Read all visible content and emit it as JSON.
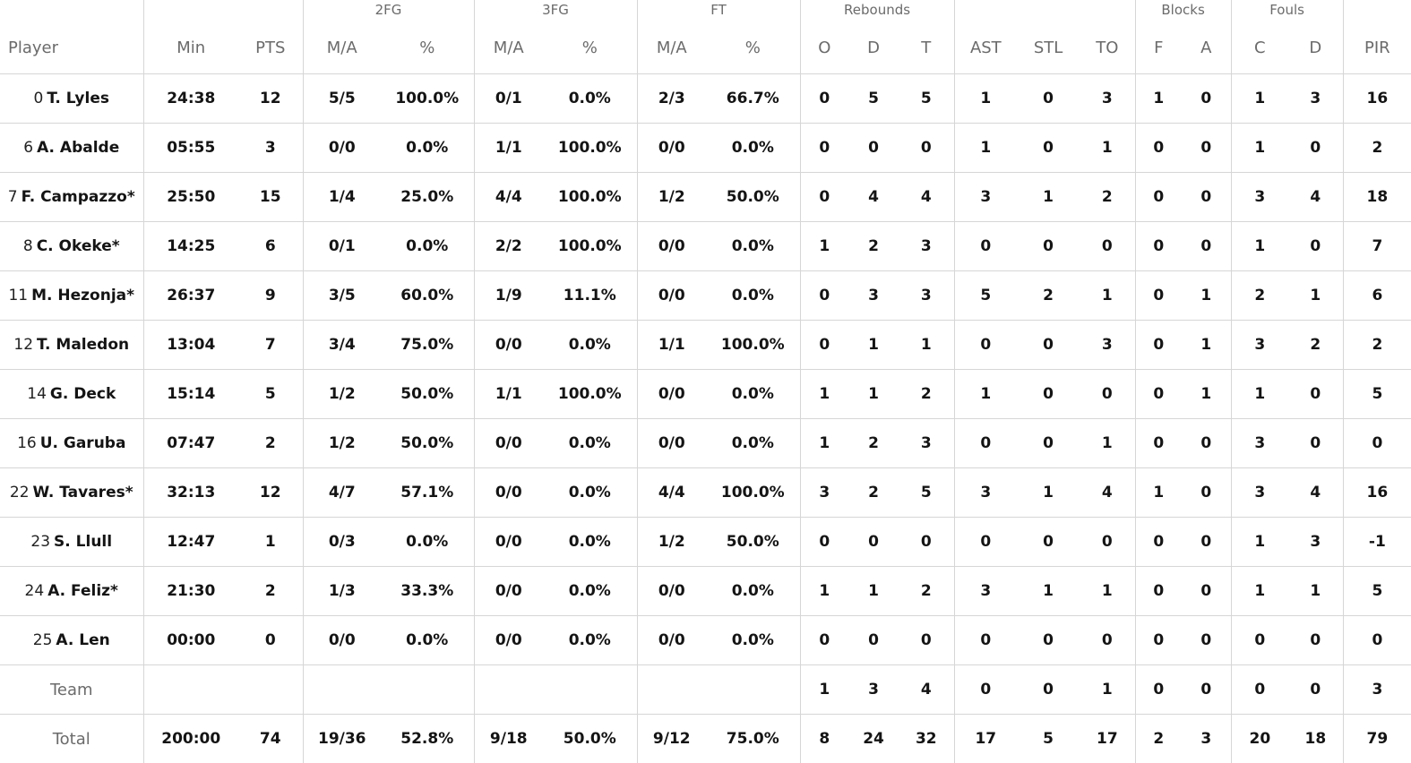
{
  "groups": {
    "fg2": "2FG",
    "fg3": "3FG",
    "ft": "FT",
    "reb": "Rebounds",
    "blk": "Blocks",
    "fouls": "Fouls"
  },
  "headers": [
    "Player",
    "Min",
    "PTS",
    "M/A",
    "%",
    "M/A",
    "%",
    "M/A",
    "%",
    "O",
    "D",
    "T",
    "AST",
    "STL",
    "TO",
    "F",
    "A",
    "C",
    "D",
    "PIR"
  ],
  "players": [
    {
      "num": "0",
      "name": "T. Lyles",
      "stats": [
        "24:38",
        "12",
        "5/5",
        "100.0%",
        "0/1",
        "0.0%",
        "2/3",
        "66.7%",
        "0",
        "5",
        "5",
        "1",
        "0",
        "3",
        "1",
        "0",
        "1",
        "3",
        "16"
      ]
    },
    {
      "num": "6",
      "name": "A. Abalde",
      "stats": [
        "05:55",
        "3",
        "0/0",
        "0.0%",
        "1/1",
        "100.0%",
        "0/0",
        "0.0%",
        "0",
        "0",
        "0",
        "1",
        "0",
        "1",
        "0",
        "0",
        "1",
        "0",
        "2"
      ]
    },
    {
      "num": "7",
      "name": "F. Campazzo*",
      "stats": [
        "25:50",
        "15",
        "1/4",
        "25.0%",
        "4/4",
        "100.0%",
        "1/2",
        "50.0%",
        "0",
        "4",
        "4",
        "3",
        "1",
        "2",
        "0",
        "0",
        "3",
        "4",
        "18"
      ]
    },
    {
      "num": "8",
      "name": "C. Okeke*",
      "stats": [
        "14:25",
        "6",
        "0/1",
        "0.0%",
        "2/2",
        "100.0%",
        "0/0",
        "0.0%",
        "1",
        "2",
        "3",
        "0",
        "0",
        "0",
        "0",
        "0",
        "1",
        "0",
        "7"
      ]
    },
    {
      "num": "11",
      "name": "M. Hezonja*",
      "stats": [
        "26:37",
        "9",
        "3/5",
        "60.0%",
        "1/9",
        "11.1%",
        "0/0",
        "0.0%",
        "0",
        "3",
        "3",
        "5",
        "2",
        "1",
        "0",
        "1",
        "2",
        "1",
        "6"
      ]
    },
    {
      "num": "12",
      "name": "T. Maledon",
      "stats": [
        "13:04",
        "7",
        "3/4",
        "75.0%",
        "0/0",
        "0.0%",
        "1/1",
        "100.0%",
        "0",
        "1",
        "1",
        "0",
        "0",
        "3",
        "0",
        "1",
        "3",
        "2",
        "2"
      ]
    },
    {
      "num": "14",
      "name": "G. Deck",
      "stats": [
        "15:14",
        "5",
        "1/2",
        "50.0%",
        "1/1",
        "100.0%",
        "0/0",
        "0.0%",
        "1",
        "1",
        "2",
        "1",
        "0",
        "0",
        "0",
        "1",
        "1",
        "0",
        "5"
      ]
    },
    {
      "num": "16",
      "name": "U. Garuba",
      "stats": [
        "07:47",
        "2",
        "1/2",
        "50.0%",
        "0/0",
        "0.0%",
        "0/0",
        "0.0%",
        "1",
        "2",
        "3",
        "0",
        "0",
        "1",
        "0",
        "0",
        "3",
        "0",
        "0"
      ]
    },
    {
      "num": "22",
      "name": "W. Tavares*",
      "stats": [
        "32:13",
        "12",
        "4/7",
        "57.1%",
        "0/0",
        "0.0%",
        "4/4",
        "100.0%",
        "3",
        "2",
        "5",
        "3",
        "1",
        "4",
        "1",
        "0",
        "3",
        "4",
        "16"
      ]
    },
    {
      "num": "23",
      "name": "S. Llull",
      "stats": [
        "12:47",
        "1",
        "0/3",
        "0.0%",
        "0/0",
        "0.0%",
        "1/2",
        "50.0%",
        "0",
        "0",
        "0",
        "0",
        "0",
        "0",
        "0",
        "0",
        "1",
        "3",
        "-1"
      ]
    },
    {
      "num": "24",
      "name": "A. Feliz*",
      "stats": [
        "21:30",
        "2",
        "1/3",
        "33.3%",
        "0/0",
        "0.0%",
        "0/0",
        "0.0%",
        "1",
        "1",
        "2",
        "3",
        "1",
        "1",
        "0",
        "0",
        "1",
        "1",
        "5"
      ]
    },
    {
      "num": "25",
      "name": "A. Len",
      "stats": [
        "00:00",
        "0",
        "0/0",
        "0.0%",
        "0/0",
        "0.0%",
        "0/0",
        "0.0%",
        "0",
        "0",
        "0",
        "0",
        "0",
        "0",
        "0",
        "0",
        "0",
        "0",
        "0"
      ]
    }
  ],
  "team": {
    "label": "Team",
    "stats": [
      "",
      "",
      "",
      "",
      "",
      "",
      "",
      "",
      "1",
      "3",
      "4",
      "0",
      "0",
      "1",
      "0",
      "0",
      "0",
      "0",
      "3"
    ]
  },
  "total": {
    "label": "Total",
    "stats": [
      "200:00",
      "74",
      "19/36",
      "52.8%",
      "9/18",
      "50.0%",
      "9/12",
      "75.0%",
      "8",
      "24",
      "32",
      "17",
      "5",
      "17",
      "2",
      "3",
      "20",
      "18",
      "79"
    ]
  }
}
